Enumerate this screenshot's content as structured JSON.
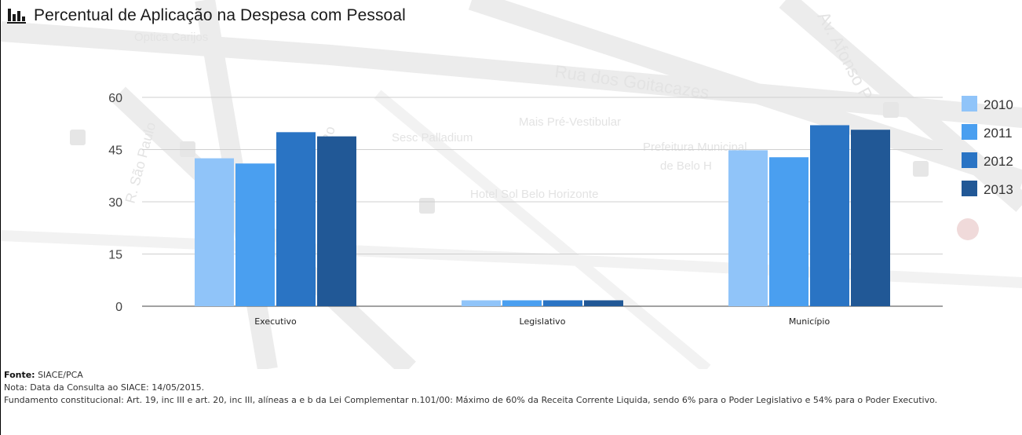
{
  "title": "Percentual de Aplicação na Despesa com Pessoal",
  "chart_data": {
    "type": "bar",
    "categories": [
      "Executivo",
      "Legislativo",
      "Município"
    ],
    "series": [
      {
        "name": "2010",
        "values": [
          42.5,
          1.7,
          44.8
        ],
        "color": "#90c4f9"
      },
      {
        "name": "2011",
        "values": [
          41.0,
          1.7,
          42.8
        ],
        "color": "#4a9ff0"
      },
      {
        "name": "2012",
        "values": [
          50.0,
          1.7,
          52.0
        ],
        "color": "#2a74c4"
      },
      {
        "name": "2013",
        "values": [
          48.8,
          1.7,
          50.7
        ],
        "color": "#215896"
      }
    ],
    "yticks": [
      "0",
      "15",
      "30",
      "45",
      "60"
    ],
    "ylim": [
      0,
      60
    ],
    "grid": true,
    "legend": "right"
  },
  "background_map_labels": [
    "Optica Carijos",
    "Rua dos Goitacazes",
    "Mais Pré-Vestibular",
    "Sesc Palladium",
    "Prefeitura Municipal",
    "de Belo H",
    "Hotel Sol Belo Horizonte",
    "Av. Afonso P",
    "R. São Paulo",
    "Ro"
  ],
  "footer": {
    "fonte_label": "Fonte:",
    "fonte_value": " SIACE/PCA",
    "nota": "Nota: Data da Consulta ao SIACE: 14/05/2015.",
    "fundamento": "Fundamento constitucional: Art. 19, inc III e art. 20, inc III, alíneas a e b da Lei Complementar n.101/00: Máximo de 60% da Receita Corrente Liquida, sendo 6% para o Poder Legislativo e 54% para o Poder Executivo."
  }
}
